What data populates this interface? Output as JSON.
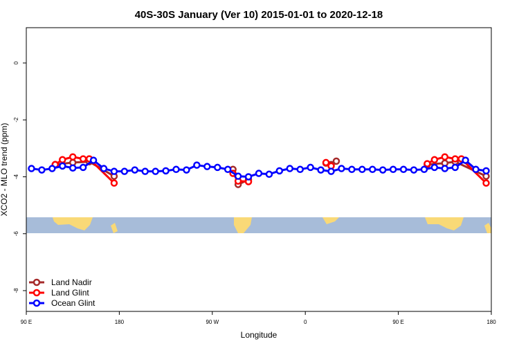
{
  "chart_data": {
    "type": "line",
    "title": "40S-30S January (Ver 10)   2015-01-01 to 2020-12-18",
    "x_label": "Longitude",
    "y_label": "XCO2 - MLO trend (ppm)",
    "xlim": [
      90,
      540
    ],
    "ylim": [
      -8.73,
      1.24
    ],
    "xticks": [
      {
        "value": 90,
        "label": "90 E"
      },
      180,
      {
        "value": 270,
        "label": "90 W"
      },
      {
        "value": 360,
        "label": "0"
      },
      {
        "value": 450,
        "label": "90 E"
      },
      {
        "value": 540,
        "label": "180"
      }
    ],
    "yticks": [
      0,
      -2,
      -4,
      -6,
      -8
    ],
    "legend": "bottom-left",
    "series": [
      {
        "name": "Land Nadir",
        "color": "#a52a2a",
        "x": [
          118,
          135,
          151,
          175,
          null,
          290,
          295,
          305,
          null,
          380,
          385,
          390,
          null,
          478,
          495,
          505,
          535
        ],
        "values": [
          -3.57,
          -3.5,
          -3.47,
          -3.98,
          null,
          -3.74,
          -4.27,
          -4.1,
          null,
          -3.52,
          -3.57,
          -3.45,
          null,
          -3.57,
          -3.52,
          -3.47,
          -3.98
        ]
      },
      {
        "name": "Land Glint",
        "color": "#ff0000",
        "x": [
          118,
          125,
          135,
          145,
          151,
          175,
          null,
          290,
          295,
          305,
          null,
          380,
          385,
          null,
          478,
          485,
          495,
          505,
          511,
          535
        ],
        "values": [
          -3.57,
          -3.4,
          -3.3,
          -3.37,
          -3.37,
          -4.22,
          null,
          -3.88,
          -4.15,
          -4.17,
          null,
          -3.5,
          -3.62,
          null,
          -3.54,
          -3.4,
          -3.3,
          -3.37,
          -3.37,
          -4.22
        ]
      },
      {
        "name": "Ocean Glint",
        "color": "#0000ff",
        "x": [
          95,
          105,
          115,
          125,
          135,
          145,
          155,
          165,
          175,
          185,
          195,
          205,
          215,
          225,
          235,
          245,
          255,
          265,
          275,
          285,
          295,
          305,
          315,
          325,
          335,
          345,
          355,
          365,
          375,
          385,
          395,
          405,
          415,
          425,
          435,
          445,
          455,
          465,
          475,
          485,
          495,
          505,
          515,
          525,
          535
        ],
        "values": [
          -3.71,
          -3.76,
          -3.71,
          -3.62,
          -3.69,
          -3.67,
          -3.42,
          -3.71,
          -3.81,
          -3.81,
          -3.76,
          -3.81,
          -3.81,
          -3.79,
          -3.74,
          -3.76,
          -3.59,
          -3.64,
          -3.67,
          -3.74,
          -3.98,
          -4.0,
          -3.88,
          -3.91,
          -3.79,
          -3.71,
          -3.74,
          -3.67,
          -3.76,
          -3.81,
          -3.71,
          -3.74,
          -3.74,
          -3.74,
          -3.76,
          -3.74,
          -3.74,
          -3.76,
          -3.74,
          -3.67,
          -3.71,
          -3.67,
          -3.42,
          -3.74,
          -3.79
        ]
      }
    ]
  }
}
